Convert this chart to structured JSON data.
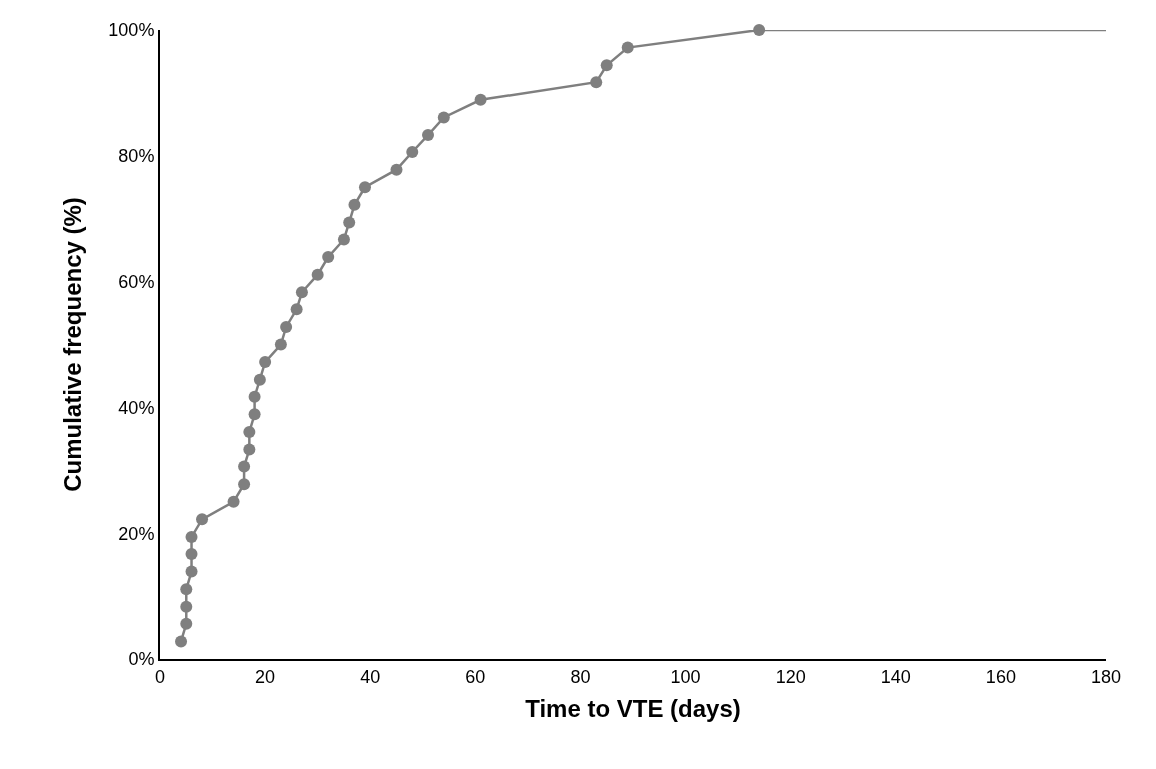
{
  "chart_data": {
    "type": "line",
    "xlabel": "Time to VTE (days)",
    "ylabel": "Cumulative frequency (%)",
    "xlim": [
      0,
      180
    ],
    "xticks": [
      0,
      20,
      40,
      60,
      80,
      100,
      120,
      140,
      160,
      180
    ],
    "ylim": [
      0,
      100
    ],
    "yticks": [
      {
        "value": 0,
        "label": "0%"
      },
      {
        "value": 20,
        "label": "20%"
      },
      {
        "value": 40,
        "label": "40%"
      },
      {
        "value": 60,
        "label": "60%"
      },
      {
        "value": 80,
        "label": "80%"
      },
      {
        "value": 100,
        "label": "100%"
      }
    ],
    "line_style": "solid",
    "series": [
      {
        "color": "#7f7f7f",
        "marker": "circle",
        "x": [
          4,
          5,
          5,
          5,
          6,
          6,
          6,
          8,
          14,
          16,
          16,
          17,
          17,
          18,
          18,
          19,
          20,
          23,
          24,
          26,
          27,
          30,
          32,
          35,
          36,
          37,
          39,
          45,
          48,
          51,
          54,
          61,
          83,
          85,
          89,
          114
        ],
        "values": [
          2.8,
          5.6,
          8.3,
          11.1,
          13.9,
          16.7,
          19.4,
          22.2,
          25.0,
          27.8,
          30.6,
          33.3,
          36.1,
          38.9,
          41.7,
          44.4,
          47.2,
          50.0,
          52.8,
          55.6,
          58.3,
          61.1,
          63.9,
          66.7,
          69.4,
          72.2,
          75.0,
          77.8,
          80.6,
          83.3,
          86.1,
          88.9,
          91.7,
          94.4,
          97.2,
          100.0
        ]
      },
      {
        "color": "#7f7f7f",
        "marker": "none",
        "x": [
          114,
          180
        ],
        "values": [
          100.0,
          100.0
        ]
      }
    ]
  }
}
